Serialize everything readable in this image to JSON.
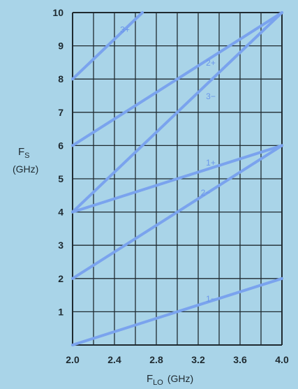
{
  "chart_data": {
    "type": "line",
    "title": "",
    "xlabel": {
      "main": "F",
      "sub": "LO",
      "unit": "(GHz)"
    },
    "ylabel": {
      "main": "F",
      "sub": "S",
      "unit": "(GHz)"
    },
    "xlim": [
      2.0,
      4.0
    ],
    "ylim": [
      0,
      10
    ],
    "x_ticks": [
      "2.0",
      "2.4",
      "2.8",
      "3.2",
      "3.6",
      "4.0"
    ],
    "y_ticks": [
      "1",
      "2",
      "3",
      "4",
      "5",
      "6",
      "7",
      "8",
      "9",
      "10"
    ],
    "grid": true,
    "line_color": "#7aa3ee",
    "grid_color": "#1f2a30",
    "background_color": "#a9d4e8",
    "series": [
      {
        "name": "3+",
        "x": [
          2.0,
          2.667
        ],
        "y": [
          8,
          10
        ],
        "label_at": [
          2.5,
          9.4
        ]
      },
      {
        "name": "2+",
        "x": [
          2.0,
          4.0
        ],
        "y": [
          6,
          10
        ],
        "label_at": [
          3.32,
          8.4
        ]
      },
      {
        "name": "3−",
        "x": [
          2.0,
          4.0
        ],
        "y": [
          4,
          10
        ],
        "label_at": [
          3.32,
          7.4
        ]
      },
      {
        "name": "1+",
        "x": [
          2.0,
          4.0
        ],
        "y": [
          4,
          6
        ],
        "label_at": [
          3.32,
          5.4
        ]
      },
      {
        "name": "2−",
        "x": [
          2.0,
          4.0
        ],
        "y": [
          2,
          6
        ],
        "label_at": [
          3.27,
          4.5
        ]
      },
      {
        "name": "1−",
        "x": [
          2.0,
          4.0
        ],
        "y": [
          0,
          2
        ],
        "label_at": [
          3.32,
          1.3
        ]
      }
    ]
  }
}
